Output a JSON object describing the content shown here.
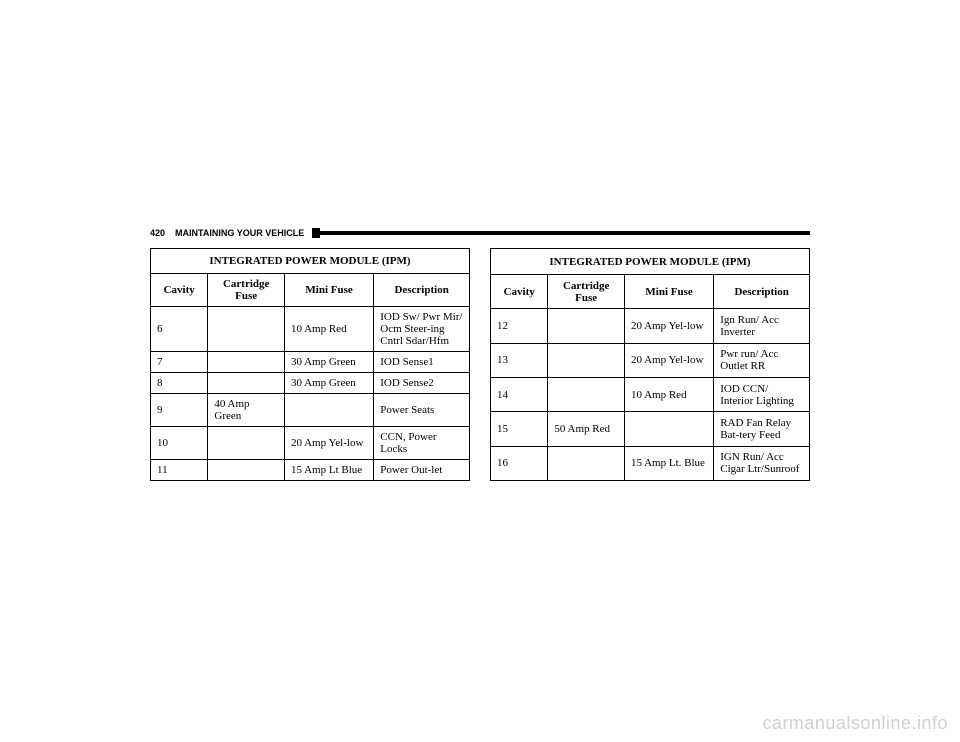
{
  "page_number": "420",
  "section_title": "MAINTAINING YOUR VEHICLE",
  "table1": {
    "title": "INTEGRATED POWER MODULE (IPM)",
    "headers": {
      "cavity": "Cavity",
      "cartridge": "Cartridge Fuse",
      "mini": "Mini Fuse",
      "desc": "Description"
    },
    "rows": [
      {
        "cavity": "6",
        "cartridge": "",
        "mini": "10 Amp Red",
        "desc": "IOD Sw/ Pwr Mir/ Ocm Steer-ing Cntrl Sdar/Hfm"
      },
      {
        "cavity": "7",
        "cartridge": "",
        "mini": "30 Amp Green",
        "desc": "IOD Sense1"
      },
      {
        "cavity": "8",
        "cartridge": "",
        "mini": "30 Amp Green",
        "desc": "IOD Sense2"
      },
      {
        "cavity": "9",
        "cartridge": "40 Amp Green",
        "mini": "",
        "desc": "Power Seats"
      },
      {
        "cavity": "10",
        "cartridge": "",
        "mini": "20 Amp Yel-low",
        "desc": "CCN, Power Locks"
      },
      {
        "cavity": "11",
        "cartridge": "",
        "mini": "15 Amp Lt Blue",
        "desc": "Power Out-let"
      }
    ]
  },
  "table2": {
    "title": "INTEGRATED POWER MODULE (IPM)",
    "headers": {
      "cavity": "Cavity",
      "cartridge": "Cartridge Fuse",
      "mini": "Mini Fuse",
      "desc": "Description"
    },
    "rows": [
      {
        "cavity": "12",
        "cartridge": "",
        "mini": "20 Amp Yel-low",
        "desc": "Ign Run/ Acc Inverter"
      },
      {
        "cavity": "13",
        "cartridge": "",
        "mini": "20 Amp Yel-low",
        "desc": "Pwr run/ Acc Outlet RR"
      },
      {
        "cavity": "14",
        "cartridge": "",
        "mini": "10 Amp Red",
        "desc": "IOD CCN/ Interior Lighting"
      },
      {
        "cavity": "15",
        "cartridge": "50 Amp Red",
        "mini": "",
        "desc": "RAD Fan Relay Bat-tery Feed"
      },
      {
        "cavity": "16",
        "cartridge": "",
        "mini": "15 Amp Lt. Blue",
        "desc": "IGN Run/ Acc Cigar Ltr/Sunroof"
      }
    ]
  },
  "watermark": "carmanualsonline.info"
}
